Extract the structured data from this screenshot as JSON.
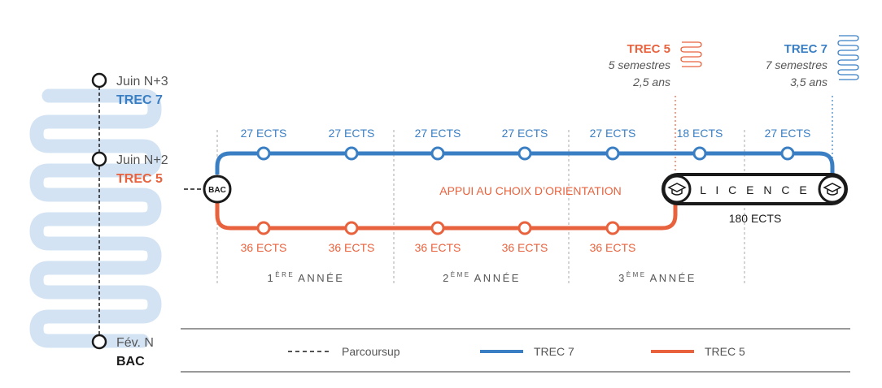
{
  "timeline": {
    "items": [
      {
        "date": "Juin N+3",
        "program": "TREC 7",
        "program_color": "#3a7fc4"
      },
      {
        "date": "Juin N+2",
        "program": "TREC 5",
        "program_color": "#e8623d"
      },
      {
        "date": "Fév. N",
        "program": "BAC",
        "program_color": "#1a1a1a"
      }
    ]
  },
  "trec5_box": {
    "title": "TREC 5",
    "duration1": "5 semestres",
    "duration2": "2,5 ans"
  },
  "trec7_box": {
    "title": "TREC 7",
    "duration1": "7 semestres",
    "duration2": "3,5 ans"
  },
  "bac_node": "BAC",
  "center_label": "APPUI AU CHOIX D’ORIENTATION",
  "licence": {
    "label": "L I C E N C E",
    "ects": "180 ECTS"
  },
  "blue_stops": [
    "27 ECTS",
    "27 ECTS",
    "27 ECTS",
    "27 ECTS",
    "27 ECTS",
    "18 ECTS",
    "27 ECTS"
  ],
  "orange_stops": [
    "36 ECTS",
    "36 ECTS",
    "36 ECTS",
    "36 ECTS",
    "36 ECTS"
  ],
  "years": [
    {
      "num": "1",
      "sup": "ÈRE",
      "word": "ANNÉE"
    },
    {
      "num": "2",
      "sup": "ÈME",
      "word": "ANNÉE"
    },
    {
      "num": "3",
      "sup": "ÈME",
      "word": "ANNÉE"
    }
  ],
  "legend": {
    "parcoursup": "Parcoursup",
    "trec7": "TREC 7",
    "trec5": "TREC 5"
  },
  "colors": {
    "blue": "#3a7fc4",
    "orange": "#e8623d",
    "dark": "#1a1a1a",
    "light_blue": "#bcd6ee"
  },
  "icons": [
    "graduation-cap-icon",
    "spring-coil-icon"
  ]
}
